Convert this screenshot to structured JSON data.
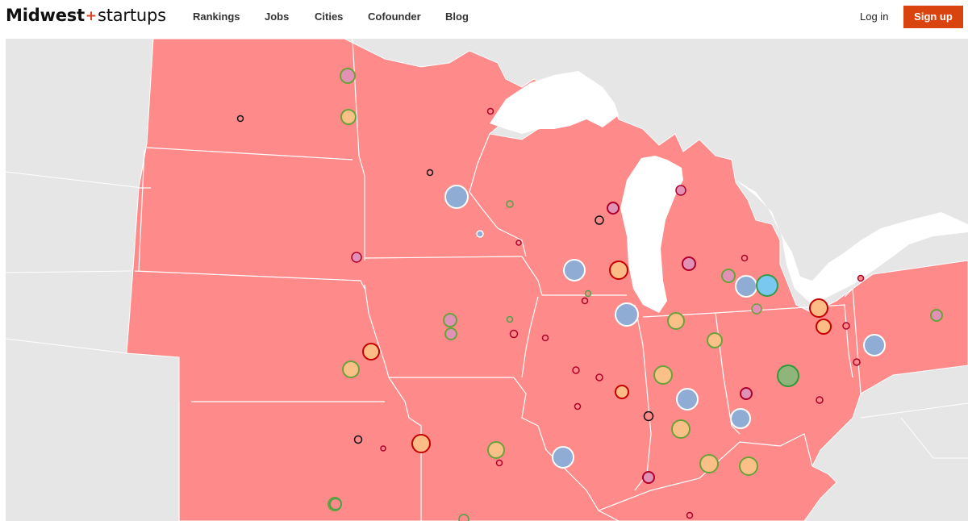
{
  "header": {
    "logo": {
      "part1": "Midwest",
      "plus": "+",
      "part2": "startups"
    },
    "nav": [
      "Rankings",
      "Jobs",
      "Cities",
      "Cofounder",
      "Blog"
    ],
    "login_label": "Log in",
    "signup_label": "Sign up"
  },
  "map": {
    "colors": {
      "background": "#e6e6e6",
      "region_fill": "#ff8a8a",
      "region_border": "#ffffff",
      "water": "#ffffff",
      "neighbor_fill": "#e0e0e0"
    },
    "categories": {
      "blue": {
        "fill": "#8facd4",
        "stroke": "#ffffff"
      },
      "cyan": {
        "fill": "#78c8ef",
        "stroke": "#3a9a4a"
      },
      "orange": {
        "fill": "#fdbb86",
        "stroke": "#c40000"
      },
      "tan": {
        "fill": "#fbbf88",
        "stroke": "#6aa23a"
      },
      "pink": {
        "fill": "#e291b6",
        "stroke": "#6aa23a"
      },
      "pinkdark": {
        "fill": "#e291b6",
        "stroke": "#b0002a"
      },
      "green": {
        "fill": "#8fb57a",
        "stroke": "#2e9a3a"
      },
      "tiny_red": {
        "fill": "#ff8a8a",
        "stroke": "#b0002a"
      },
      "tiny_black": {
        "fill": "#ff8a8a",
        "stroke": "#111111"
      },
      "tiny_green": {
        "fill": "#ff8a8a",
        "stroke": "#4aa24a"
      }
    },
    "markers": [
      {
        "cat": "pink",
        "r": 9
      },
      {
        "cat": "tan",
        "r": 9
      },
      {
        "cat": "tiny_black",
        "r": 3.5
      },
      {
        "cat": "tiny_red",
        "r": 3.5
      },
      {
        "cat": "tiny_black",
        "r": 3.5
      },
      {
        "cat": "blue",
        "r": 14
      },
      {
        "cat": "tiny_green",
        "r": 4
      },
      {
        "cat": "tiny_red",
        "r": 3
      },
      {
        "cat": "blue",
        "r": 4
      },
      {
        "cat": "pinkdark",
        "r": 6
      },
      {
        "cat": "tiny_black",
        "r": 5
      },
      {
        "cat": "pinkdark",
        "r": 7
      },
      {
        "cat": "pinkdark",
        "r": 6
      },
      {
        "cat": "blue",
        "r": 13
      },
      {
        "cat": "orange",
        "r": 11
      },
      {
        "cat": "pinkdark",
        "r": 8
      },
      {
        "cat": "tiny_red",
        "r": 3.5
      },
      {
        "cat": "pink",
        "r": 8
      },
      {
        "cat": "blue",
        "r": 13
      },
      {
        "cat": "cyan",
        "r": 13
      },
      {
        "cat": "tiny_red",
        "r": 3.5
      },
      {
        "cat": "tiny_green",
        "r": 3.5
      },
      {
        "cat": "tiny_red",
        "r": 3.5
      },
      {
        "cat": "blue",
        "r": 14
      },
      {
        "cat": "tan",
        "r": 10
      },
      {
        "cat": "pink",
        "r": 6
      },
      {
        "cat": "orange",
        "r": 11
      },
      {
        "cat": "orange",
        "r": 9
      },
      {
        "cat": "tiny_red",
        "r": 4
      },
      {
        "cat": "pink",
        "r": 7
      },
      {
        "cat": "tiny_green",
        "r": 3.5
      },
      {
        "cat": "pink",
        "r": 8
      },
      {
        "cat": "tiny_red",
        "r": 4.5
      },
      {
        "cat": "tiny_red",
        "r": 3.5
      },
      {
        "cat": "orange",
        "r": 10
      },
      {
        "cat": "tan",
        "r": 10
      },
      {
        "cat": "tan",
        "r": 9
      },
      {
        "cat": "tiny_red",
        "r": 4
      },
      {
        "cat": "tiny_red",
        "r": 4
      },
      {
        "cat": "orange",
        "r": 8
      },
      {
        "cat": "tan",
        "r": 11
      },
      {
        "cat": "blue",
        "r": 13
      },
      {
        "cat": "pinkdark",
        "r": 7
      },
      {
        "cat": "green",
        "r": 13
      },
      {
        "cat": "tiny_red",
        "r": 4
      },
      {
        "cat": "tiny_red",
        "r": 4
      },
      {
        "cat": "blue",
        "r": 13
      },
      {
        "cat": "tiny_red",
        "r": 3.5
      },
      {
        "cat": "tiny_black",
        "r": 5.5
      },
      {
        "cat": "tan",
        "r": 11
      },
      {
        "cat": "blue",
        "r": 12
      },
      {
        "cat": "tiny_black",
        "r": 4.5
      },
      {
        "cat": "tiny_red",
        "r": 3
      },
      {
        "cat": "orange",
        "r": 11
      },
      {
        "cat": "tan",
        "r": 10
      },
      {
        "cat": "tiny_red",
        "r": 3.5
      },
      {
        "cat": "blue",
        "r": 13
      },
      {
        "cat": "pinkdark",
        "r": 7
      },
      {
        "cat": "tan",
        "r": 11
      },
      {
        "cat": "tan",
        "r": 11
      },
      {
        "cat": "tiny_red",
        "r": 3.5
      },
      {
        "cat": "pink",
        "r": 8
      },
      {
        "cat": "tiny_green",
        "r": 6
      },
      {
        "cat": "pink",
        "r": 7
      },
      {
        "cat": "tiny_green",
        "r": 7
      }
    ]
  }
}
